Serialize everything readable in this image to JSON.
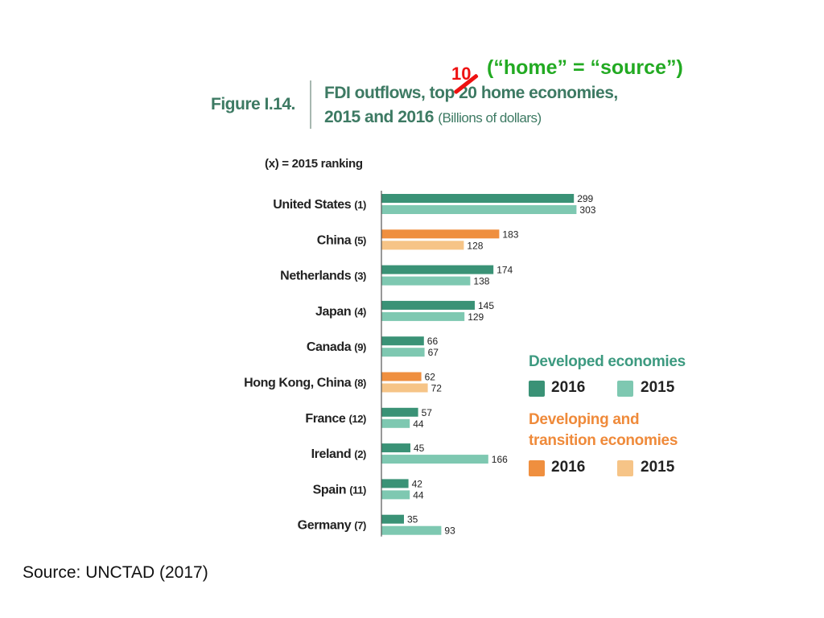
{
  "figure": {
    "label": "Figure I.14.",
    "title_line1": "FDI outflows, top 20 home economies,",
    "title_line2": "2015 and 2016",
    "units": "(Billions of dollars)",
    "ranking_note": "(x) = 2015 ranking"
  },
  "annotation": {
    "replacement_number": "10",
    "note": "(“home” = “source”)",
    "colors": {
      "number": "#ee1111",
      "note": "#22aa22"
    }
  },
  "legend": {
    "developed_heading": "Developed economies",
    "developing_heading_line1": "Developing and",
    "developing_heading_line2": "transition economies",
    "year_2016": "2016",
    "year_2015": "2015"
  },
  "colors": {
    "developed_2016": "#3a9276",
    "developed_2015": "#7ec8b1",
    "developing_2016": "#ef8f3f",
    "developing_2015": "#f6c487",
    "developed_heading": "#3d9a80",
    "developing_heading": "#ef8a3a",
    "title": "#3d7a63"
  },
  "chart_data": {
    "type": "bar",
    "orientation": "horizontal",
    "title": "FDI outflows, top 20 home economies, 2015 and 2016",
    "units": "Billions of dollars",
    "grid": false,
    "legend_position": "right",
    "series_names": [
      "2016",
      "2015"
    ],
    "categories": [
      {
        "name": "United States",
        "rank": "(1)",
        "group": "developed",
        "v2016": 299,
        "v2015": 303
      },
      {
        "name": "China",
        "rank": "(5)",
        "group": "developing",
        "v2016": 183,
        "v2015": 128
      },
      {
        "name": "Netherlands",
        "rank": "(3)",
        "group": "developed",
        "v2016": 174,
        "v2015": 138
      },
      {
        "name": "Japan",
        "rank": "(4)",
        "group": "developed",
        "v2016": 145,
        "v2015": 129
      },
      {
        "name": "Canada",
        "rank": "(9)",
        "group": "developed",
        "v2016": 66,
        "v2015": 67
      },
      {
        "name": "Hong Kong, China",
        "rank": "(8)",
        "group": "developing",
        "v2016": 62,
        "v2015": 72
      },
      {
        "name": "France",
        "rank": "(12)",
        "group": "developed",
        "v2016": 57,
        "v2015": 44
      },
      {
        "name": "Ireland",
        "rank": "(2)",
        "group": "developed",
        "v2016": 45,
        "v2015": 166
      },
      {
        "name": "Spain",
        "rank": "(11)",
        "group": "developed",
        "v2016": 42,
        "v2015": 44
      },
      {
        "name": "Germany",
        "rank": "(7)",
        "group": "developed",
        "v2016": 35,
        "v2015": 93
      }
    ]
  },
  "footer": {
    "source": "Source:  UNCTAD (2017)"
  }
}
